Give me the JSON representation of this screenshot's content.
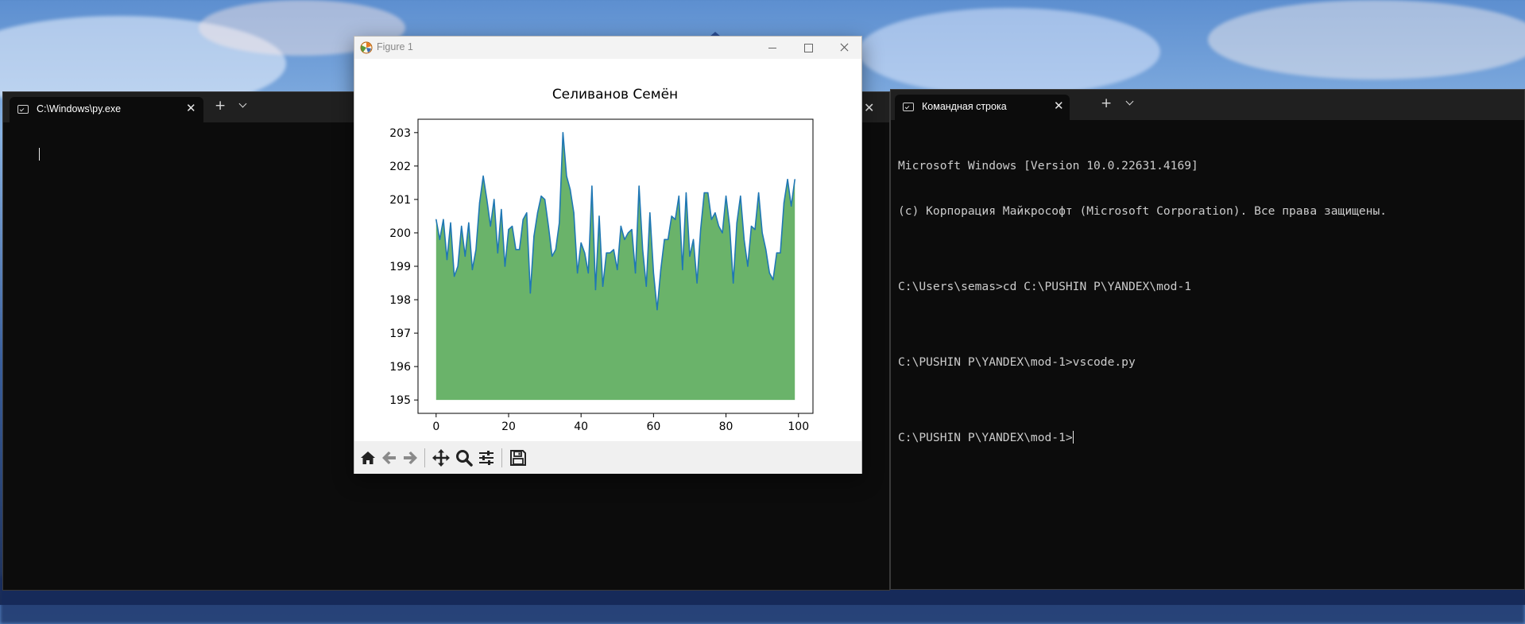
{
  "desktop": {
    "accent": "#5d8fd0"
  },
  "left_terminal": {
    "tab_title": "C:\\Windows\\py.exe",
    "close_glyph": "✕",
    "new_tab_glyph": "+",
    "icon": "terminal-icon"
  },
  "right_terminal": {
    "tab_title": "Командная строка",
    "close_glyph": "✕",
    "new_tab_glyph": "+",
    "icon": "terminal-icon",
    "lines": [
      "Microsoft Windows [Version 10.0.22631.4169]",
      "(c) Корпорация Майкрософт (Microsoft Corporation). Все права защищены.",
      "",
      "C:\\Users\\semas>cd C:\\PUSHIN P\\YANDEX\\mod-1",
      "",
      "C:\\PUSHIN P\\YANDEX\\mod-1>vscode.py",
      ""
    ],
    "prompt": "C:\\PUSHIN P\\YANDEX\\mod-1>"
  },
  "hidden_tab_close_glyph": "✕",
  "figure_window": {
    "title": "Figure 1",
    "toolbar": [
      "home-icon",
      "back-arrow-icon",
      "forward-arrow-icon",
      "pan-icon",
      "zoom-icon",
      "configure-subplots-icon",
      "save-icon"
    ]
  },
  "chart_data": {
    "type": "area",
    "title": "Селиванов Семён",
    "xlabel": "",
    "ylabel": "",
    "xlim": [
      -5,
      104
    ],
    "ylim": [
      194.6,
      203.4
    ],
    "xticks": [
      0,
      20,
      40,
      60,
      80,
      100
    ],
    "yticks": [
      195,
      196,
      197,
      198,
      199,
      200,
      201,
      202,
      203
    ],
    "fill_baseline": 195,
    "fill_color": "#6ab36a",
    "line_color": "#1f77b4",
    "grid": false,
    "legend": "none",
    "x": [
      0,
      1,
      2,
      3,
      4,
      5,
      6,
      7,
      8,
      9,
      10,
      11,
      12,
      13,
      14,
      15,
      16,
      17,
      18,
      19,
      20,
      21,
      22,
      23,
      24,
      25,
      26,
      27,
      28,
      29,
      30,
      31,
      32,
      33,
      34,
      35,
      36,
      37,
      38,
      39,
      40,
      41,
      42,
      43,
      44,
      45,
      46,
      47,
      48,
      49,
      50,
      51,
      52,
      53,
      54,
      55,
      56,
      57,
      58,
      59,
      60,
      61,
      62,
      63,
      64,
      65,
      66,
      67,
      68,
      69,
      70,
      71,
      72,
      73,
      74,
      75,
      76,
      77,
      78,
      79,
      80,
      81,
      82,
      83,
      84,
      85,
      86,
      87,
      88,
      89,
      90,
      91,
      92,
      93,
      94,
      95,
      96,
      97,
      98,
      99
    ],
    "y": [
      200.4,
      199.8,
      200.4,
      199.2,
      200.3,
      198.7,
      199.0,
      200.2,
      199.3,
      200.3,
      198.9,
      199.5,
      200.9,
      201.7,
      201.0,
      200.2,
      201.0,
      199.4,
      200.7,
      199.0,
      200.1,
      200.2,
      199.5,
      199.5,
      200.4,
      200.6,
      198.2,
      199.9,
      200.6,
      201.1,
      201.0,
      200.2,
      199.3,
      199.5,
      200.3,
      203.0,
      201.7,
      201.3,
      200.6,
      198.8,
      199.7,
      199.4,
      198.8,
      201.4,
      198.3,
      200.5,
      198.4,
      199.4,
      199.4,
      199.5,
      198.9,
      200.2,
      199.8,
      200.0,
      200.1,
      198.8,
      201.4,
      199.5,
      198.4,
      200.6,
      198.8,
      197.7,
      198.9,
      199.8,
      199.8,
      200.5,
      200.4,
      201.1,
      198.9,
      201.2,
      199.3,
      199.8,
      198.5,
      200.1,
      201.2,
      201.2,
      200.4,
      200.6,
      200.2,
      200.0,
      201.1,
      200.2,
      198.5,
      200.3,
      201.1,
      199.8,
      199.0,
      200.2,
      200.1,
      201.2,
      200.0,
      199.5,
      198.8,
      198.6,
      199.4,
      199.4,
      200.9,
      201.6,
      200.8,
      201.6
    ]
  }
}
